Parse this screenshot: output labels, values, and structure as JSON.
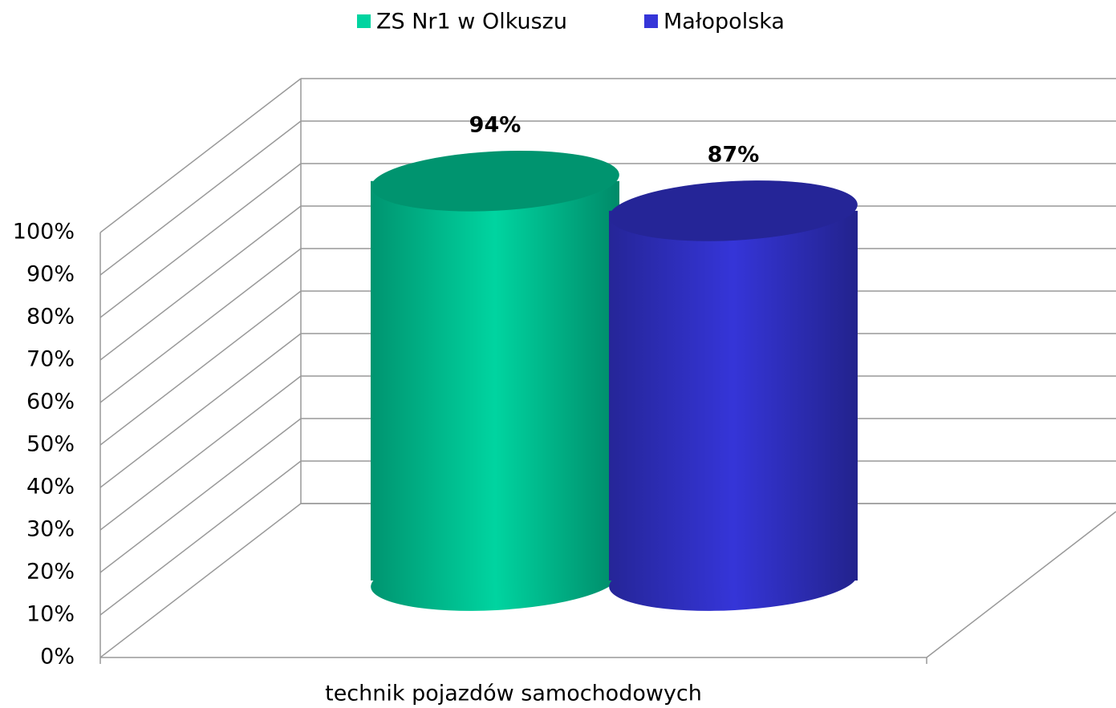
{
  "chart_data": {
    "type": "bar3d",
    "categories": [
      "technik pojazdów samochodowych"
    ],
    "series": [
      {
        "name": "ZS Nr1 w Olkuszu",
        "color": "#00d4a0",
        "values": [
          94
        ],
        "value_labels": [
          "94%"
        ]
      },
      {
        "name": "Małopolska",
        "color": "#3535d8",
        "values": [
          87
        ],
        "value_labels": [
          "87%"
        ]
      }
    ],
    "ylim": [
      0,
      100
    ],
    "yticks": [
      {
        "value": 0,
        "label": "0%"
      },
      {
        "value": 10,
        "label": "10%"
      },
      {
        "value": 20,
        "label": "20%"
      },
      {
        "value": 30,
        "label": "30%"
      },
      {
        "value": 40,
        "label": "40%"
      },
      {
        "value": 50,
        "label": "50%"
      },
      {
        "value": 60,
        "label": "60%"
      },
      {
        "value": 70,
        "label": "70%"
      },
      {
        "value": 80,
        "label": "80%"
      },
      {
        "value": 90,
        "label": "90%"
      },
      {
        "value": 100,
        "label": "100%"
      }
    ],
    "grid": true,
    "legend": "top"
  }
}
